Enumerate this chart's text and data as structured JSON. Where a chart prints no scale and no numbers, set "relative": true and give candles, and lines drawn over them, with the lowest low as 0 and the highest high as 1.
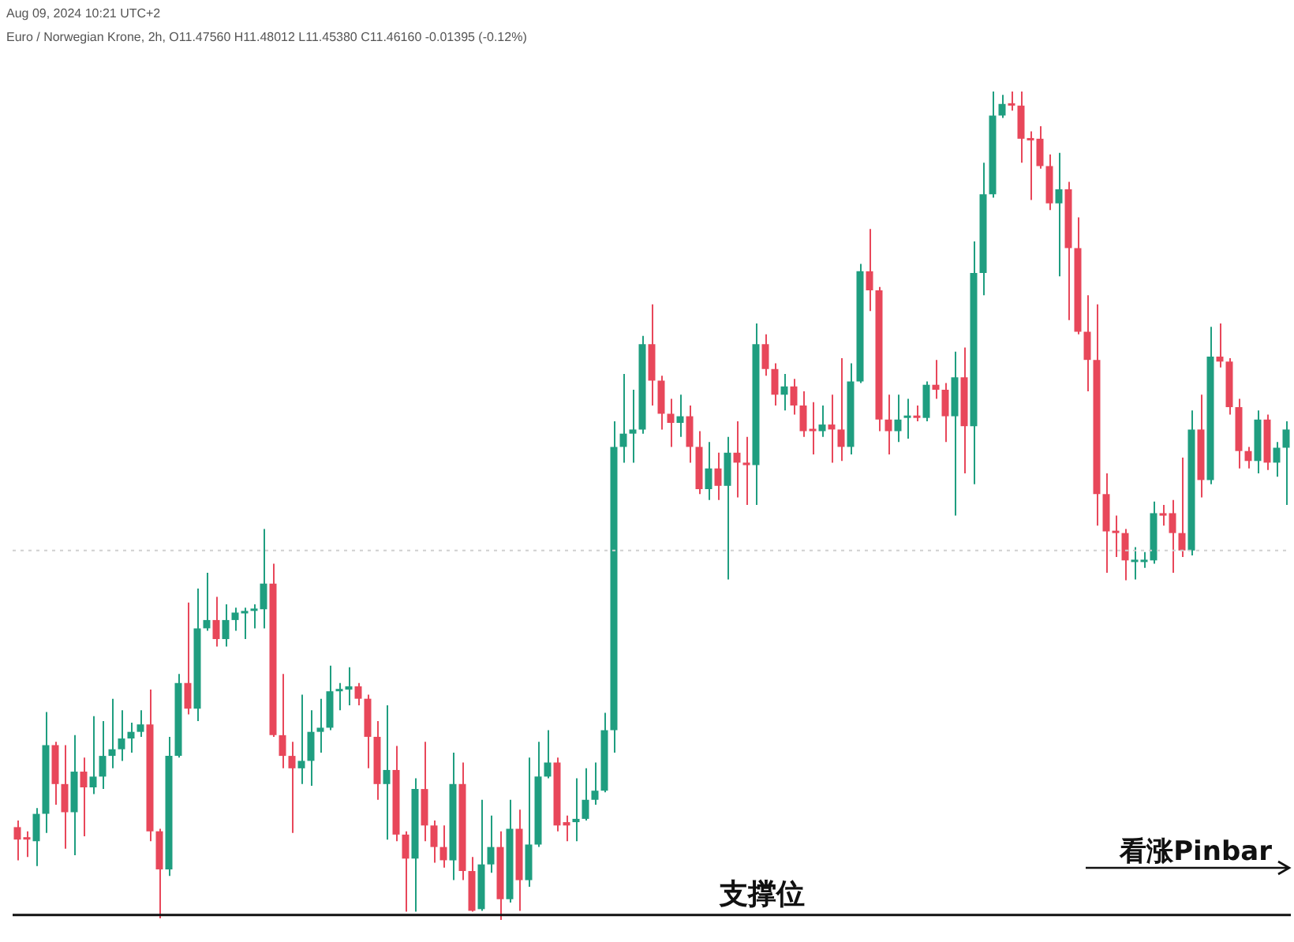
{
  "chart_data": {
    "type": "candlestick",
    "subtitle": "Aug 09, 2024 10:21 UTC+2",
    "title": "Euro / Norwegian Krone, 2h, O11.47560 H11.48012 L11.45380 C11.46160 -0.01395 (-0.12%)",
    "relative": true,
    "categories": [
      null,
      null,
      null,
      null,
      null,
      null,
      null,
      null,
      null,
      null,
      null,
      null,
      null,
      null,
      null,
      null,
      null,
      null,
      null,
      null,
      null,
      null,
      null,
      null,
      null,
      null,
      null,
      null,
      null,
      null,
      null,
      null,
      null,
      null,
      null,
      null,
      null,
      null,
      null,
      null,
      null,
      null,
      null,
      null,
      null,
      null,
      null,
      null,
      null,
      null,
      null,
      null,
      null,
      null,
      null,
      null,
      null,
      null,
      null,
      null,
      null,
      null,
      null,
      null,
      null,
      null,
      null,
      null,
      null,
      null,
      null,
      null,
      null,
      null,
      null,
      null,
      null,
      null,
      null,
      null,
      null,
      null,
      null,
      null,
      null,
      null,
      null,
      null,
      null,
      null,
      null,
      null,
      null,
      null,
      null,
      null,
      null,
      null,
      null,
      null,
      null,
      null,
      null,
      null,
      null,
      null,
      null,
      null,
      null,
      null,
      null,
      null,
      null,
      null,
      null,
      null,
      null,
      null,
      null,
      null,
      null,
      null,
      null,
      null,
      null,
      null,
      null,
      null,
      null,
      null,
      null,
      null,
      null,
      null,
      null
    ],
    "ohlc": [
      [
        0.112,
        0.12,
        0.072,
        0.097
      ],
      [
        0.099,
        0.107,
        0.076,
        0.097
      ],
      [
        0.095,
        0.135,
        0.065,
        0.128
      ],
      [
        0.128,
        0.251,
        0.105,
        0.211
      ],
      [
        0.211,
        0.215,
        0.139,
        0.164
      ],
      [
        0.164,
        0.211,
        0.086,
        0.13
      ],
      [
        0.13,
        0.223,
        0.078,
        0.179
      ],
      [
        0.179,
        0.196,
        0.101,
        0.16
      ],
      [
        0.16,
        0.246,
        0.152,
        0.173
      ],
      [
        0.173,
        0.24,
        0.158,
        0.198
      ],
      [
        0.198,
        0.267,
        0.183,
        0.206
      ],
      [
        0.206,
        0.253,
        0.192,
        0.219
      ],
      [
        0.219,
        0.238,
        0.202,
        0.227
      ],
      [
        0.227,
        0.253,
        0.221,
        0.236
      ],
      [
        0.236,
        0.278,
        0.095,
        0.107
      ],
      [
        0.107,
        0.11,
        0.002,
        0.061
      ],
      [
        0.061,
        0.221,
        0.053,
        0.198
      ],
      [
        0.198,
        0.297,
        0.196,
        0.286
      ],
      [
        0.286,
        0.383,
        0.248,
        0.255
      ],
      [
        0.255,
        0.4,
        0.24,
        0.352
      ],
      [
        0.352,
        0.419,
        0.349,
        0.362
      ],
      [
        0.362,
        0.39,
        0.33,
        0.339
      ],
      [
        0.339,
        0.381,
        0.33,
        0.362
      ],
      [
        0.362,
        0.377,
        0.349,
        0.371
      ],
      [
        0.37,
        0.377,
        0.339,
        0.373
      ],
      [
        0.373,
        0.381,
        0.352,
        0.375
      ],
      [
        0.375,
        0.472,
        0.352,
        0.406
      ],
      [
        0.406,
        0.43,
        0.221,
        0.223
      ],
      [
        0.223,
        0.297,
        0.183,
        0.198
      ],
      [
        0.198,
        0.215,
        0.105,
        0.183
      ],
      [
        0.183,
        0.272,
        0.164,
        0.192
      ],
      [
        0.192,
        0.253,
        0.162,
        0.227
      ],
      [
        0.227,
        0.267,
        0.202,
        0.232
      ],
      [
        0.232,
        0.307,
        0.229,
        0.276
      ],
      [
        0.276,
        0.286,
        0.253,
        0.278
      ],
      [
        0.278,
        0.305,
        0.259,
        0.282
      ],
      [
        0.282,
        0.286,
        0.259,
        0.267
      ],
      [
        0.267,
        0.272,
        0.183,
        0.221
      ],
      [
        0.221,
        0.24,
        0.145,
        0.164
      ],
      [
        0.164,
        0.259,
        0.097,
        0.181
      ],
      [
        0.181,
        0.21,
        0.095,
        0.103
      ],
      [
        0.103,
        0.107,
        0.01,
        0.074
      ],
      [
        0.074,
        0.171,
        0.01,
        0.158
      ],
      [
        0.158,
        0.215,
        0.095,
        0.114
      ],
      [
        0.114,
        0.12,
        0.069,
        0.088
      ],
      [
        0.088,
        0.114,
        0.063,
        0.072
      ],
      [
        0.072,
        0.202,
        0.048,
        0.164
      ],
      [
        0.164,
        0.19,
        0.048,
        0.059
      ],
      [
        0.059,
        0.076,
        0.01,
        0.011
      ],
      [
        0.013,
        0.145,
        0.011,
        0.067
      ],
      [
        0.067,
        0.126,
        0.057,
        0.088
      ],
      [
        0.088,
        0.107,
        0.0,
        0.025
      ],
      [
        0.025,
        0.145,
        0.021,
        0.11
      ],
      [
        0.11,
        0.133,
        0.011,
        0.048
      ],
      [
        0.048,
        0.196,
        0.04,
        0.091
      ],
      [
        0.091,
        0.215,
        0.088,
        0.173
      ],
      [
        0.173,
        0.229,
        0.171,
        0.19
      ],
      [
        0.19,
        0.196,
        0.107,
        0.114
      ],
      [
        0.118,
        0.126,
        0.095,
        0.114
      ],
      [
        0.118,
        0.171,
        0.095,
        0.122
      ],
      [
        0.122,
        0.183,
        0.12,
        0.145
      ],
      [
        0.145,
        0.19,
        0.139,
        0.156
      ],
      [
        0.156,
        0.25,
        0.154,
        0.229
      ],
      [
        0.229,
        0.602,
        0.202,
        0.571
      ],
      [
        0.571,
        0.659,
        0.552,
        0.587
      ],
      [
        0.587,
        0.64,
        0.552,
        0.592
      ],
      [
        0.592,
        0.705,
        0.587,
        0.695
      ],
      [
        0.695,
        0.743,
        0.621,
        0.651
      ],
      [
        0.651,
        0.657,
        0.592,
        0.611
      ],
      [
        0.611,
        0.629,
        0.571,
        0.6
      ],
      [
        0.6,
        0.634,
        0.583,
        0.608
      ],
      [
        0.608,
        0.621,
        0.552,
        0.571
      ],
      [
        0.571,
        0.59,
        0.514,
        0.52
      ],
      [
        0.52,
        0.577,
        0.507,
        0.545
      ],
      [
        0.545,
        0.564,
        0.507,
        0.524
      ],
      [
        0.524,
        0.583,
        0.411,
        0.564
      ],
      [
        0.564,
        0.602,
        0.51,
        0.552
      ],
      [
        0.552,
        0.583,
        0.501,
        0.549
      ],
      [
        0.549,
        0.72,
        0.501,
        0.695
      ],
      [
        0.695,
        0.707,
        0.657,
        0.665
      ],
      [
        0.665,
        0.672,
        0.621,
        0.634
      ],
      [
        0.634,
        0.659,
        0.615,
        0.644
      ],
      [
        0.644,
        0.653,
        0.61,
        0.621
      ],
      [
        0.621,
        0.638,
        0.583,
        0.59
      ],
      [
        0.592,
        0.625,
        0.562,
        0.59
      ],
      [
        0.59,
        0.621,
        0.583,
        0.598
      ],
      [
        0.598,
        0.634,
        0.552,
        0.592
      ],
      [
        0.592,
        0.678,
        0.554,
        0.571
      ],
      [
        0.571,
        0.672,
        0.562,
        0.65
      ],
      [
        0.65,
        0.792,
        0.648,
        0.783
      ],
      [
        0.783,
        0.834,
        0.735,
        0.76
      ],
      [
        0.76,
        0.764,
        0.59,
        0.604
      ],
      [
        0.604,
        0.634,
        0.562,
        0.59
      ],
      [
        0.59,
        0.634,
        0.577,
        0.604
      ],
      [
        0.606,
        0.629,
        0.581,
        0.608
      ],
      [
        0.608,
        0.621,
        0.602,
        0.606
      ],
      [
        0.606,
        0.65,
        0.602,
        0.646
      ],
      [
        0.646,
        0.676,
        0.629,
        0.64
      ],
      [
        0.64,
        0.648,
        0.577,
        0.608
      ],
      [
        0.608,
        0.686,
        0.488,
        0.655
      ],
      [
        0.655,
        0.691,
        0.539,
        0.596
      ],
      [
        0.596,
        0.819,
        0.526,
        0.781
      ],
      [
        0.781,
        0.914,
        0.754,
        0.876
      ],
      [
        0.876,
        1.0,
        0.872,
        0.971
      ],
      [
        0.971,
        0.996,
        0.968,
        0.985
      ],
      [
        0.985,
        1.0,
        0.977,
        0.983
      ],
      [
        0.983,
        1.0,
        0.914,
        0.943
      ],
      [
        0.943,
        0.952,
        0.869,
        0.941
      ],
      [
        0.943,
        0.958,
        0.907,
        0.91
      ],
      [
        0.91,
        0.924,
        0.857,
        0.865
      ],
      [
        0.865,
        0.926,
        0.777,
        0.882
      ],
      [
        0.882,
        0.891,
        0.724,
        0.811
      ],
      [
        0.811,
        0.848,
        0.707,
        0.71
      ],
      [
        0.71,
        0.754,
        0.638,
        0.676
      ],
      [
        0.676,
        0.743,
        0.476,
        0.514
      ],
      [
        0.514,
        0.539,
        0.419,
        0.469
      ],
      [
        0.469,
        0.488,
        0.438,
        0.467
      ],
      [
        0.467,
        0.472,
        0.41,
        0.434
      ],
      [
        0.432,
        0.45,
        0.411,
        0.434
      ],
      [
        0.432,
        0.444,
        0.425,
        0.434
      ],
      [
        0.434,
        0.505,
        0.43,
        0.491
      ],
      [
        0.491,
        0.501,
        0.476,
        0.488
      ],
      [
        0.491,
        0.507,
        0.419,
        0.467
      ],
      [
        0.467,
        0.558,
        0.438,
        0.446
      ],
      [
        0.446,
        0.615,
        0.44,
        0.592
      ],
      [
        0.592,
        0.634,
        0.51,
        0.531
      ],
      [
        0.531,
        0.716,
        0.526,
        0.68
      ],
      [
        0.68,
        0.72,
        0.667,
        0.674
      ],
      [
        0.674,
        0.678,
        0.61,
        0.619
      ],
      [
        0.619,
        0.629,
        0.545,
        0.566
      ],
      [
        0.566,
        0.571,
        0.545,
        0.554
      ],
      [
        0.554,
        0.615,
        0.539,
        0.604
      ],
      [
        0.604,
        0.61,
        0.543,
        0.552
      ],
      [
        0.552,
        0.577,
        0.535,
        0.57
      ],
      [
        0.57,
        0.602,
        0.501,
        0.592
      ]
    ],
    "colors": [
      "#e8475a",
      "#e8475a",
      "#1f9e80",
      "#1f9e80",
      "#e8475a",
      "#e8475a",
      "#1f9e80",
      "#e8475a",
      "#1f9e80",
      "#1f9e80",
      "#1f9e80",
      "#1f9e80",
      "#1f9e80",
      "#1f9e80",
      "#e8475a",
      "#e8475a",
      "#1f9e80",
      "#1f9e80",
      "#e8475a",
      "#1f9e80",
      "#1f9e80",
      "#e8475a",
      "#1f9e80",
      "#1f9e80",
      "#1f9e80",
      "#1f9e80",
      "#1f9e80",
      "#e8475a",
      "#e8475a",
      "#e8475a",
      "#1f9e80",
      "#1f9e80",
      "#1f9e80",
      "#1f9e80",
      "#1f9e80",
      "#1f9e80",
      "#e8475a",
      "#e8475a",
      "#e8475a",
      "#1f9e80",
      "#e8475a",
      "#e8475a",
      "#1f9e80",
      "#e8475a",
      "#e8475a",
      "#e8475a",
      "#1f9e80",
      "#e8475a",
      "#e8475a",
      "#1f9e80",
      "#1f9e80",
      "#e8475a",
      "#1f9e80",
      "#e8475a",
      "#1f9e80",
      "#1f9e80",
      "#1f9e80",
      "#e8475a",
      "#e8475a",
      "#1f9e80",
      "#1f9e80",
      "#1f9e80",
      "#1f9e80",
      "#1f9e80",
      "#1f9e80",
      "#1f9e80",
      "#1f9e80",
      "#e8475a",
      "#e8475a",
      "#e8475a",
      "#1f9e80",
      "#e8475a",
      "#e8475a",
      "#1f9e80",
      "#e8475a",
      "#1f9e80",
      "#e8475a",
      "#e8475a",
      "#1f9e80",
      "#e8475a",
      "#e8475a",
      "#1f9e80",
      "#e8475a",
      "#e8475a",
      "#e8475a",
      "#1f9e80",
      "#e8475a",
      "#e8475a",
      "#1f9e80",
      "#1f9e80",
      "#e8475a",
      "#e8475a",
      "#e8475a",
      "#1f9e80",
      "#1f9e80",
      "#e8475a",
      "#1f9e80",
      "#e8475a",
      "#e8475a",
      "#1f9e80",
      "#e8475a",
      "#1f9e80",
      "#1f9e80",
      "#1f9e80",
      "#1f9e80",
      "#e8475a",
      "#e8475a",
      "#e8475a",
      "#e8475a",
      "#e8475a",
      "#1f9e80",
      "#e8475a",
      "#e8475a",
      "#e8475a",
      "#e8475a",
      "#e8475a",
      "#e8475a",
      "#e8475a",
      "#1f9e80",
      "#1f9e80",
      "#1f9e80",
      "#e8475a",
      "#e8475a",
      "#e8475a",
      "#1f9e80",
      "#e8475a",
      "#1f9e80",
      "#e8475a",
      "#e8475a",
      "#e8475a",
      "#e8475a",
      "#1f9e80",
      "#e8475a",
      "#1f9e80",
      "#1f9e80"
    ],
    "ref_lines": [
      {
        "axis": "y",
        "value": 0.446,
        "color": "#d0d0d0",
        "line_style": "dotted"
      },
      {
        "axis": "y",
        "value": 0.006,
        "label": "支撑位",
        "color": "#111111",
        "line_style": "solid"
      }
    ],
    "annotations": [
      "看涨Pinbar"
    ]
  }
}
